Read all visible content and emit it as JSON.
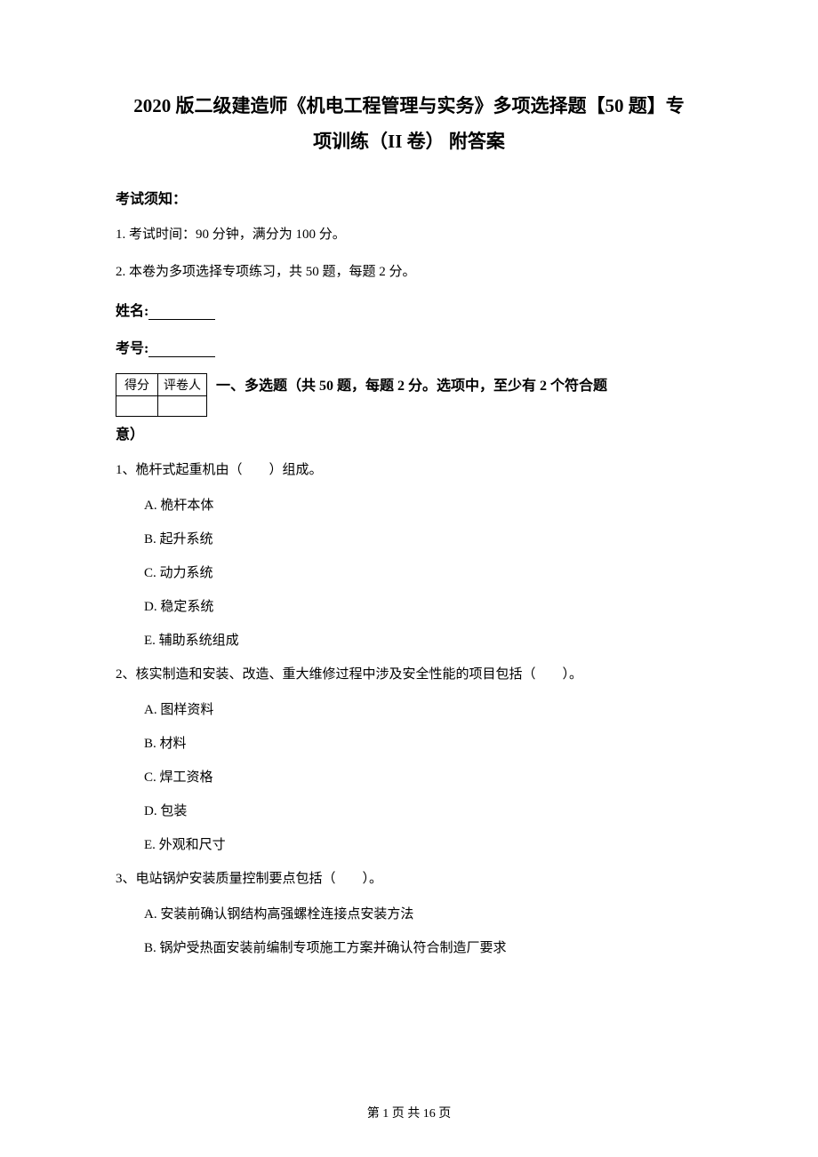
{
  "colors": {
    "background": "#ffffff",
    "text": "#000000",
    "border": "#000000"
  },
  "typography": {
    "body_font": "SimSun",
    "title_fontsize": 21,
    "body_fontsize": 15,
    "label_fontsize": 16
  },
  "title_line1": "2020 版二级建造师《机电工程管理与实务》多项选择题【50 题】专",
  "title_line2": "项训练（II 卷）  附答案",
  "instructions_label": "考试须知：",
  "instructions": [
    "1. 考试时间：90 分钟，满分为 100 分。",
    "2. 本卷为多项选择专项练习，共 50 题，每题 2 分。"
  ],
  "name_label": "姓名:",
  "id_label": "考号:",
  "score_table": {
    "header": [
      "得分",
      "评卷人"
    ]
  },
  "section_heading_prefix": "一、多选题（共 50 题，每题 2 分。选项中，至少有 2 个符合题",
  "section_heading_suffix": "意）",
  "questions": [
    {
      "number": "1、",
      "stem": "桅杆式起重机由（  ）组成。",
      "options": [
        "A. 桅杆本体",
        "B. 起升系统",
        "C. 动力系统",
        "D. 稳定系统",
        "E. 辅助系统组成"
      ]
    },
    {
      "number": "2、",
      "stem": "核实制造和安装、改造、重大维修过程中涉及安全性能的项目包括（  ）。",
      "options": [
        "A. 图样资料",
        "B. 材料",
        "C. 焊工资格",
        "D. 包装",
        "E. 外观和尺寸"
      ]
    },
    {
      "number": "3、",
      "stem": "电站锅炉安装质量控制要点包括（  ）。",
      "options": [
        "A. 安装前确认钢结构高强螺栓连接点安装方法",
        "B. 锅炉受热面安装前编制专项施工方案并确认符合制造厂要求"
      ]
    }
  ],
  "footer": "第  1  页  共  16  页"
}
